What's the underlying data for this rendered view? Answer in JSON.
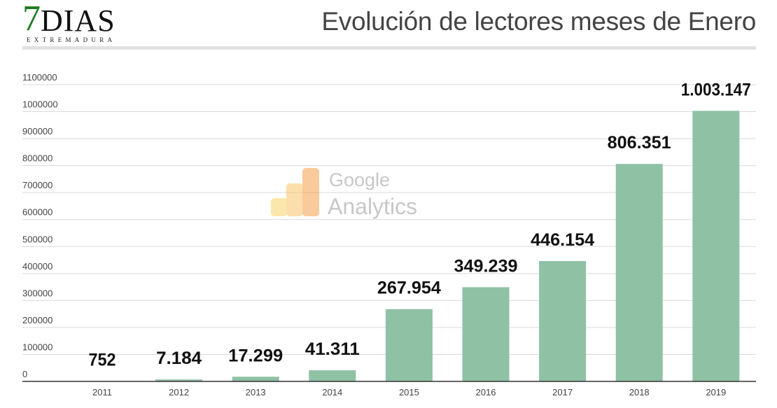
{
  "logo": {
    "seven": "7",
    "dias": "DIAS",
    "subtitle": "EXTREMADURA"
  },
  "watermark": {
    "line1": "Google",
    "line2": "Analytics"
  },
  "colors": {
    "bar": "#8fc1a5",
    "grid": "#d9d9d9",
    "axis": "#333333",
    "logo_green": "#1d7a1d"
  },
  "chart_data": {
    "type": "bar",
    "title": "Evolución de lectores meses de Enero",
    "xlabel": "",
    "ylabel": "",
    "categories": [
      "2011",
      "2012",
      "2013",
      "2014",
      "2015",
      "2016",
      "2017",
      "2018",
      "2019"
    ],
    "values": [
      752,
      7184,
      17299,
      41311,
      267954,
      349239,
      446154,
      806351,
      1003147
    ],
    "data_labels": [
      "752",
      "7.184",
      "17.299",
      "41.311",
      "267.954",
      "349.239",
      "446.154",
      "806.351",
      "1.003.147"
    ],
    "ylim": [
      0,
      1100000
    ],
    "yticks": [
      "0",
      "100000",
      "200000",
      "300000",
      "400000",
      "500000",
      "600000",
      "700000",
      "800000",
      "900000",
      "1000000",
      "1100000"
    ],
    "grid": true,
    "legend": "none"
  }
}
